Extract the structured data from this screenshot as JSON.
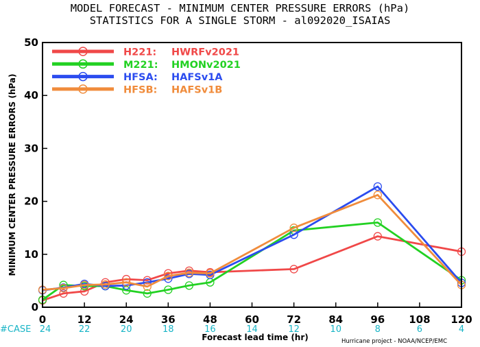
{
  "chart_data": {
    "type": "line",
    "title": "MODEL FORECAST - MINIMUM CENTER PRESSURE ERRORS (hPa)",
    "subtitle": "STATISTICS FOR A SINGLE STORM - al092020_ISAIAS",
    "xlabel": "Forecast lead time (hr)",
    "ylabel": "MINIMUM CENTER PRESSURE ERRORS (hPa)",
    "xlim": [
      0,
      120
    ],
    "ylim": [
      0,
      50
    ],
    "xticks": [
      0,
      12,
      24,
      36,
      48,
      60,
      72,
      84,
      96,
      108,
      120
    ],
    "yticks": [
      0,
      10,
      20,
      30,
      40,
      50
    ],
    "legend_position": "top-left",
    "case_label": "#CASE",
    "case_counts": [
      "24",
      "22",
      "20",
      "18",
      "16",
      "14",
      "12",
      "10",
      "8",
      "6",
      "4"
    ],
    "credit": "Hurricane project - NOAA/NCEP/EMC",
    "series": [
      {
        "name": "H221:",
        "desc": "HWRFv2021",
        "color": "#f04848",
        "x": [
          0,
          6,
          12,
          18,
          24,
          30,
          36,
          42,
          48,
          72,
          96,
          120
        ],
        "y": [
          1.3,
          2.6,
          3.0,
          4.7,
          5.3,
          5.1,
          6.4,
          6.9,
          6.6,
          7.2,
          13.4,
          10.5
        ]
      },
      {
        "name": "M221:",
        "desc": "HMONv2021",
        "color": "#22d122",
        "x": [
          0,
          6,
          12,
          18,
          24,
          30,
          36,
          42,
          48,
          72,
          96,
          120
        ],
        "y": [
          1.4,
          4.2,
          4.0,
          4.0,
          3.2,
          2.6,
          3.3,
          4.1,
          4.7,
          14.5,
          16.0,
          5.1
        ]
      },
      {
        "name": "HFSA:",
        "desc": "HAFSv1A",
        "color": "#2b4cef",
        "x": [
          0,
          6,
          12,
          18,
          24,
          30,
          36,
          42,
          48,
          72,
          96,
          120
        ],
        "y": [
          3.2,
          3.7,
          4.4,
          4.0,
          4.1,
          4.7,
          5.4,
          6.3,
          6.1,
          13.7,
          22.8,
          4.6
        ]
      },
      {
        "name": "HFSB:",
        "desc": "HAFSv1B",
        "color": "#f08c3c",
        "x": [
          0,
          6,
          12,
          18,
          24,
          30,
          36,
          42,
          48,
          72,
          96,
          120
        ],
        "y": [
          3.3,
          3.6,
          4.2,
          4.3,
          4.7,
          3.9,
          5.9,
          6.5,
          6.4,
          15.0,
          21.2,
          4.2
        ]
      }
    ]
  }
}
